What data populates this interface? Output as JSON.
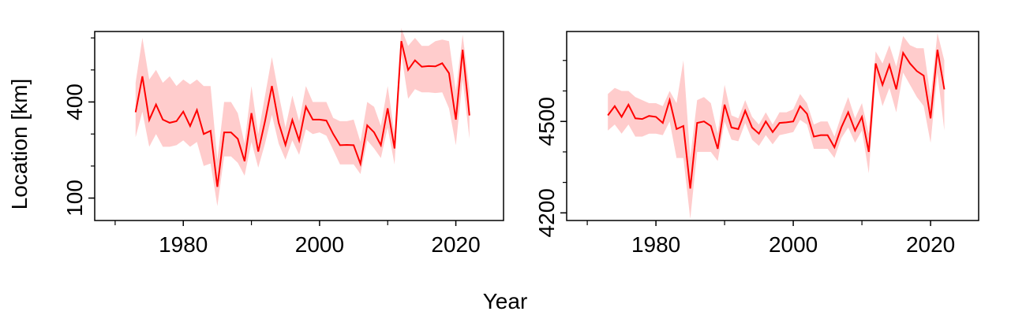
{
  "figure": {
    "xlabel": "Year",
    "ylabel": "Location [km]"
  },
  "colors": {
    "line": "#ff0000",
    "band": "#ffcccc",
    "axis": "#000000"
  },
  "chart_data": [
    {
      "type": "line",
      "title": "",
      "xlabel": "",
      "ylabel": "",
      "xlim": [
        1967,
        2027
      ],
      "ylim": [
        30,
        620
      ],
      "xticks": [
        1980,
        2000,
        2020
      ],
      "xtick_labels": [
        "1980",
        "2000",
        "2020"
      ],
      "yticks": [
        100,
        400
      ],
      "ytick_labels": [
        "100",
        "400"
      ],
      "yminor": [
        100,
        200,
        300,
        400,
        500,
        600
      ],
      "grid": false,
      "series": [
        {
          "x": [
            1973,
            1974,
            1975,
            1976,
            1977,
            1978,
            1979,
            1980,
            1981,
            1982,
            1983,
            1984,
            1985,
            1986,
            1987,
            1988,
            1989,
            1990,
            1991,
            1992,
            1993,
            1994,
            1995,
            1996,
            1997,
            1998,
            1999,
            2000,
            2001,
            2002,
            2003,
            2004,
            2005,
            2006,
            2007,
            2008,
            2009,
            2010,
            2011,
            2012,
            2013,
            2014,
            2015,
            2016,
            2017,
            2018,
            2019,
            2020,
            2021,
            2022
          ],
          "y": [
            368,
            480,
            344,
            392,
            345,
            335,
            340,
            370,
            325,
            375,
            300,
            310,
            135,
            305,
            305,
            285,
            215,
            365,
            245,
            340,
            450,
            335,
            266,
            344,
            280,
            385,
            345,
            345,
            342,
            300,
            265,
            266,
            265,
            207,
            327,
            305,
            265,
            380,
            255,
            590,
            500,
            530,
            510,
            512,
            511,
            521,
            490,
            345,
            563,
            358
          ],
          "lower": [
            290,
            370,
            260,
            300,
            260,
            260,
            265,
            280,
            260,
            275,
            200,
            208,
            75,
            230,
            230,
            210,
            170,
            275,
            195,
            270,
            360,
            270,
            220,
            280,
            235,
            315,
            300,
            305,
            295,
            250,
            205,
            205,
            205,
            175,
            280,
            255,
            225,
            320,
            205,
            550,
            410,
            440,
            430,
            430,
            428,
            430,
            380,
            265,
            470,
            285
          ],
          "upper": [
            460,
            600,
            470,
            500,
            460,
            480,
            450,
            470,
            455,
            470,
            450,
            450,
            220,
            400,
            400,
            365,
            270,
            450,
            300,
            420,
            540,
            425,
            320,
            420,
            340,
            450,
            400,
            400,
            400,
            350,
            340,
            340,
            345,
            275,
            400,
            385,
            325,
            450,
            300,
            630,
            575,
            600,
            575,
            575,
            590,
            595,
            590,
            435,
            610,
            440
          ]
        }
      ]
    },
    {
      "type": "line",
      "title": "",
      "xlabel": "",
      "ylabel": "",
      "xlim": [
        1967,
        2027
      ],
      "ylim": [
        4175,
        4795
      ],
      "xticks": [
        1980,
        2000,
        2020
      ],
      "xtick_labels": [
        "1980",
        "2000",
        "2020"
      ],
      "yticks": [
        4200,
        4500
      ],
      "ytick_labels": [
        "4200",
        "4500"
      ],
      "yminor": [
        4200,
        4300,
        4400,
        4500,
        4600,
        4700
      ],
      "grid": false,
      "series": [
        {
          "x": [
            1973,
            1974,
            1975,
            1976,
            1977,
            1978,
            1979,
            1980,
            1981,
            1982,
            1983,
            1984,
            1985,
            1986,
            1987,
            1988,
            1989,
            1990,
            1991,
            1992,
            1993,
            1994,
            1995,
            1996,
            1997,
            1998,
            1999,
            2000,
            2001,
            2002,
            2003,
            2004,
            2005,
            2006,
            2007,
            2008,
            2009,
            2010,
            2011,
            2012,
            2013,
            2014,
            2015,
            2016,
            2017,
            2018,
            2019,
            2020,
            2021,
            2022
          ],
          "y": [
            4520,
            4550,
            4515,
            4555,
            4510,
            4508,
            4518,
            4515,
            4495,
            4570,
            4475,
            4485,
            4280,
            4495,
            4500,
            4485,
            4410,
            4555,
            4480,
            4475,
            4535,
            4480,
            4460,
            4500,
            4465,
            4495,
            4497,
            4500,
            4550,
            4525,
            4450,
            4455,
            4455,
            4415,
            4480,
            4530,
            4470,
            4515,
            4400,
            4690,
            4620,
            4685,
            4605,
            4725,
            4690,
            4665,
            4650,
            4510,
            4735,
            4605
          ],
          "lower": [
            4470,
            4490,
            4460,
            4490,
            4450,
            4450,
            4460,
            4460,
            4455,
            4500,
            4380,
            4380,
            4180,
            4400,
            4400,
            4400,
            4370,
            4500,
            4440,
            4435,
            4495,
            4440,
            4420,
            4455,
            4425,
            4455,
            4460,
            4465,
            4505,
            4490,
            4410,
            4410,
            4410,
            4380,
            4445,
            4480,
            4430,
            4470,
            4330,
            4640,
            4550,
            4610,
            4530,
            4660,
            4620,
            4580,
            4550,
            4430,
            4660,
            4470
          ],
          "upper": [
            4590,
            4610,
            4600,
            4600,
            4580,
            4570,
            4560,
            4560,
            4550,
            4600,
            4560,
            4700,
            4380,
            4570,
            4580,
            4560,
            4460,
            4620,
            4520,
            4510,
            4570,
            4515,
            4490,
            4530,
            4490,
            4530,
            4530,
            4540,
            4590,
            4560,
            4490,
            4500,
            4500,
            4450,
            4520,
            4580,
            4510,
            4560,
            4460,
            4730,
            4690,
            4750,
            4680,
            4780,
            4750,
            4740,
            4740,
            4580,
            4790,
            4700
          ]
        }
      ]
    }
  ]
}
